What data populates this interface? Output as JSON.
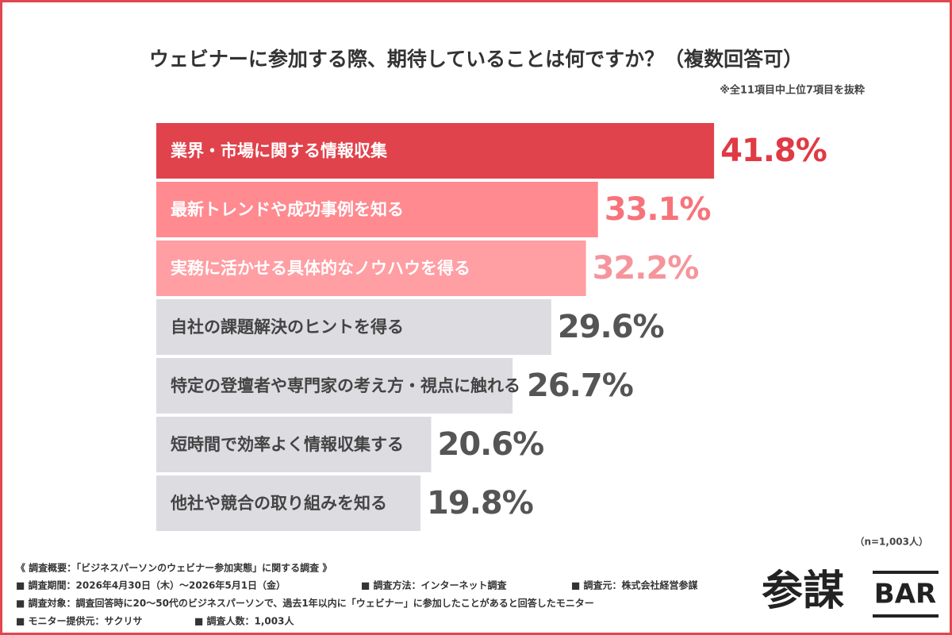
{
  "chart_data": {
    "type": "bar",
    "orientation": "horizontal",
    "title": "ウェビナーに参加する際、期待していることは何ですか？（複数回答可）",
    "subtitle": "※全11項目中上位7項目を抜粋",
    "categories": [
      "業界・市場に関する情報収集",
      "最新トレンドや成功事例を知る",
      "実務に活かせる具体的なノウハウを得る",
      "自社の課題解決のヒントを得る",
      "特定の登壇者や専門家の考え方・視点に触れる",
      "短時間で効率よく情報収集する",
      "他社や競合の取り組みを知る"
    ],
    "values": [
      41.8,
      33.1,
      32.2,
      29.6,
      26.7,
      20.6,
      19.8
    ],
    "value_labels": [
      "41.8%",
      "33.1%",
      "32.2%",
      "29.6%",
      "26.7%",
      "20.6%",
      "19.8%"
    ],
    "colors": [
      "#e0434c",
      "#ff8a90",
      "#ff9ea3",
      "#dcdce1",
      "#dcdce1",
      "#dcdce1",
      "#dcdce1"
    ],
    "label_colors": [
      "#e03a44",
      "#f7737b",
      "#f5959b",
      "#555555",
      "#555555",
      "#555555",
      "#555555"
    ],
    "text_colors": [
      "#ffffff",
      "#ffffff",
      "#ffffff",
      "#444444",
      "#444444",
      "#444444",
      "#444444"
    ],
    "xlim": [
      0,
      50
    ],
    "annotation": "（n=1,003人）"
  },
  "footer": {
    "heading": "《 調査概要：「ビジネスパーソンのウェビナー参加実態」に関する調査 》",
    "rows": [
      [
        "■ 調査期間：2026年4月30日（木）〜2026年5月1日（金）",
        "■ 調査方法：インターネット調査",
        "■ 調査元：株式会社経営参謀"
      ],
      [
        "■ 調査対象：調査回答時に20〜50代のビジネスパーソンで、過去1年以内に「ウェビナー」に参加したことがあると回答したモニター"
      ],
      [
        "■ モニター提供元：サクリサ",
        "■ 調査人数：1,003人"
      ]
    ]
  },
  "logo": {
    "main": "参謀",
    "sub": "BAR"
  }
}
